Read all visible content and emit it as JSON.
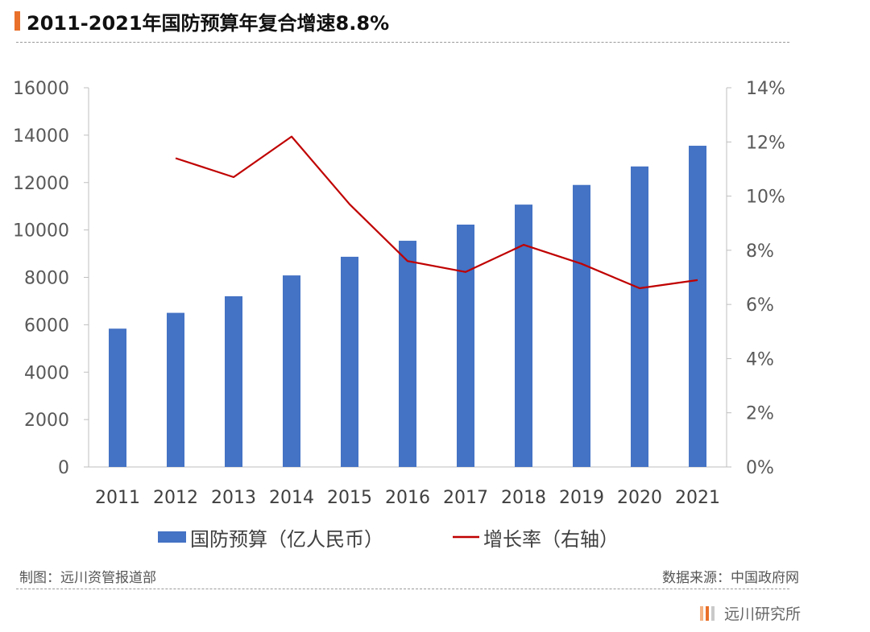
{
  "title": "2011-2021年国防预算年复合增速8.8%",
  "colors": {
    "accent": "#e8702a",
    "bar": "#4472c4",
    "line": "#c00000",
    "brand_bars": [
      "#f4b183",
      "#e8702a",
      "#c9c9c9"
    ]
  },
  "footer": {
    "left": "制图：远川资管报道部",
    "right": "数据来源：中国政府网"
  },
  "brand": {
    "name": "远川研究所",
    "logo_icon": "three-vertical-bars-icon"
  },
  "chart_data": {
    "type": "bar",
    "categories": [
      "2011",
      "2012",
      "2013",
      "2014",
      "2015",
      "2016",
      "2017",
      "2018",
      "2019",
      "2020",
      "2021"
    ],
    "series": [
      {
        "name": "国防预算（亿人民币）",
        "type": "bar",
        "axis": "left",
        "values": [
          5836,
          6503,
          7202,
          8082,
          8869,
          9544,
          10226,
          11070,
          11899,
          12680,
          13553
        ]
      },
      {
        "name": "增长率（右轴）",
        "type": "line",
        "axis": "right",
        "values": [
          null,
          11.4,
          10.7,
          12.2,
          9.7,
          7.6,
          7.2,
          8.2,
          7.5,
          6.6,
          6.9
        ]
      }
    ],
    "left_axis": {
      "ylim": [
        0,
        16000
      ],
      "ticks": [
        "0",
        "2000",
        "4000",
        "6000",
        "8000",
        "10000",
        "12000",
        "14000",
        "16000"
      ]
    },
    "right_axis": {
      "ylim": [
        0,
        14
      ],
      "ticks": [
        "0%",
        "2%",
        "4%",
        "6%",
        "8%",
        "10%",
        "12%",
        "14%"
      ]
    },
    "grid": false,
    "legend_position": "bottom"
  }
}
